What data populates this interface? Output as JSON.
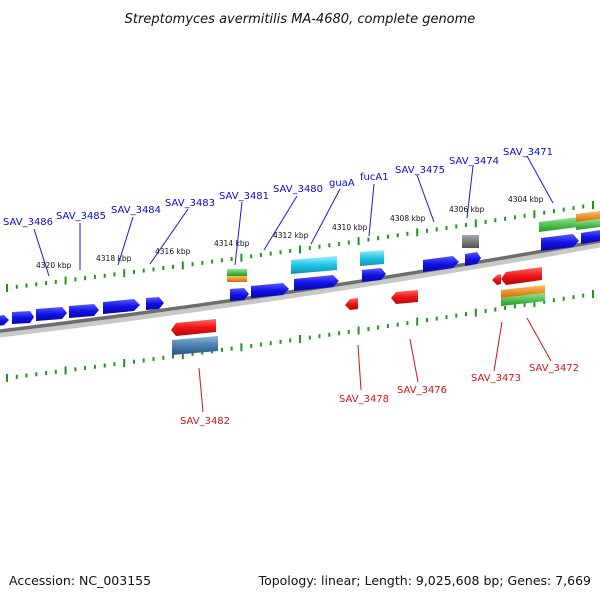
{
  "title": "Streptomyces avermitilis MA-4680, complete genome",
  "footer": {
    "accession": "Accession: NC_003155",
    "summary": "Topology: linear; Length: 9,025,608 bp; Genes: 7,669"
  },
  "colors": {
    "forward_gene": "#1010e0",
    "reverse_gene": "#e01010",
    "rna_cyan": "#20c8e8",
    "steel_blue": "#4a7fb0",
    "gray_gene": "#707070",
    "green_gene": "#38b838",
    "orange_gene": "#f08c1c",
    "scale_green": "#1a9a1a",
    "label_blue": "#0a0ad4",
    "label_red": "#d41414"
  },
  "scale_labels": [
    "4320 kbp",
    "4318 kbp",
    "4316 kbp",
    "4314 kbp",
    "4312 kbp",
    "4310 kbp",
    "4308 kbp",
    "4306 kbp",
    "4304 kbp"
  ],
  "top_gene_labels": [
    "SAV_3486",
    "SAV_3485",
    "SAV_3484",
    "SAV_3483",
    "SAV_3481",
    "SAV_3480",
    "guaA",
    "fucA1",
    "SAV_3475",
    "SAV_3474",
    "SAV_3471"
  ],
  "bottom_gene_labels": [
    "SAV_3482",
    "SAV_3478",
    "SAV_3476",
    "SAV_3473",
    "SAV_3472"
  ]
}
